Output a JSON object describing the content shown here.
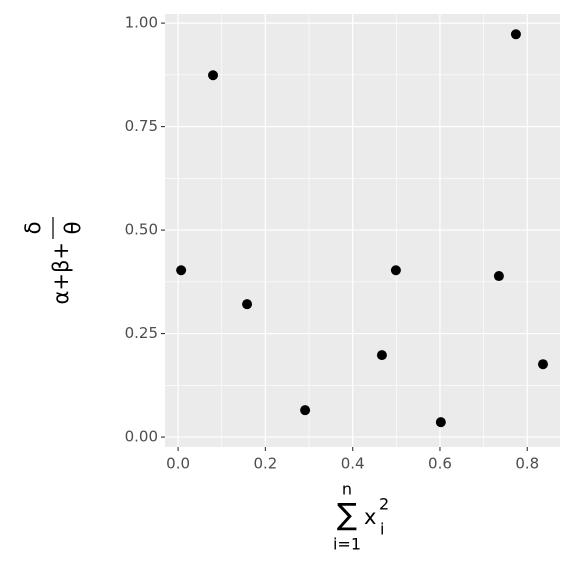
{
  "chart_data": {
    "type": "scatter",
    "xlabel": {
      "sum": "∑",
      "lower": "i=1",
      "upper": "n",
      "base": "x",
      "sub": "i",
      "sup": "2"
    },
    "ylabel": {
      "left": "α+β+",
      "numerator": "δ",
      "denominator": "θ"
    },
    "x": [
      0.007,
      0.08,
      0.158,
      0.291,
      0.467,
      0.499,
      0.602,
      0.735,
      0.774,
      0.836
    ],
    "y": [
      0.403,
      0.874,
      0.321,
      0.065,
      0.198,
      0.403,
      0.036,
      0.389,
      0.973,
      0.176
    ],
    "color": "#000000",
    "xlim": [
      -0.03,
      0.875
    ],
    "ylim": [
      -0.024,
      1.022
    ],
    "xticks": [
      {
        "value": 0,
        "label": "0.0"
      },
      0.2,
      0.4,
      0.6,
      0.8
    ],
    "yticks": [
      {
        "value": 0,
        "label": "0.00"
      },
      0.25,
      {
        "value": 0.5,
        "label": "0.50"
      },
      0.75,
      {
        "value": 1,
        "label": "1.00"
      }
    ],
    "grid": true
  }
}
